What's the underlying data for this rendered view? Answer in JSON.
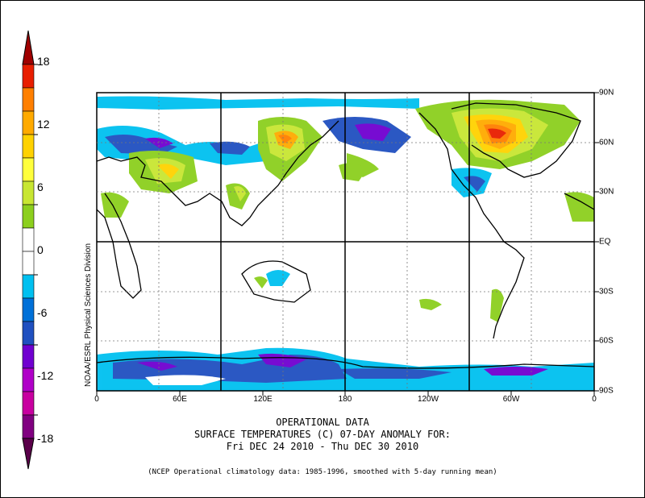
{
  "title": {
    "line1": "OPERATIONAL DATA",
    "line2": "SURFACE TEMPERATURES (C)   07-DAY ANOMALY FOR:",
    "line3": "Fri DEC 24 2010 - Thu DEC 30 2010"
  },
  "footnote": "(NCEP Operational climatology data: 1985-1996, smoothed with 5-day running mean)",
  "credit": "NOAA/ESRL Physical Sciences Division",
  "colorbar": {
    "labels": [
      "18",
      "12",
      "6",
      "0",
      "-6",
      "-12",
      "-18"
    ],
    "colors": [
      "#a00000",
      "#e81e00",
      "#ff7f00",
      "#ffaa00",
      "#ffd200",
      "#ffff3c",
      "#c8e632",
      "#8ccf1e",
      "#ffffff",
      "#ffffff",
      "#00c0f0",
      "#0070d8",
      "#2050c0",
      "#7000d0",
      "#b000c8",
      "#c800a0",
      "#800080",
      "#5a004a"
    ]
  },
  "map": {
    "lon_labels": [
      "0",
      "60E",
      "120E",
      "180",
      "120W",
      "60W",
      "0"
    ],
    "lat_labels": [
      "90N",
      "60N",
      "30N",
      "EQ",
      "30S",
      "60S",
      "90S"
    ]
  }
}
